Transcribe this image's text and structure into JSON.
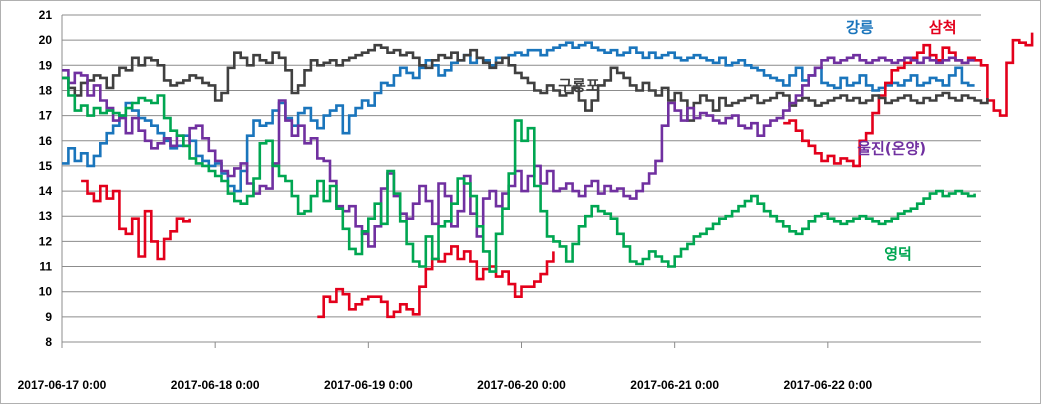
{
  "chart_data": {
    "type": "line",
    "title": "",
    "xlabel": "",
    "ylabel": "",
    "x_start": "2017-06-17 0:00",
    "x_end": "2017-06-22 23:00",
    "x_step_hours": 1,
    "x_tick_labels": [
      "2017-06-17 0:00",
      "2017-06-18 0:00",
      "2017-06-19 0:00",
      "2017-06-20 0:00",
      "2017-06-21 0:00",
      "2017-06-22 0:00"
    ],
    "ylim": [
      8,
      21
    ],
    "y_ticks": [
      8,
      9,
      10,
      11,
      12,
      13,
      14,
      15,
      16,
      17,
      18,
      19,
      20,
      21
    ],
    "grid": "horizontal",
    "series": [
      {
        "name": "강릉",
        "color": "#1a75bc",
        "label_near_hour": 125,
        "values": [
          15.1,
          15.7,
          15.2,
          15.5,
          15.0,
          15.4,
          15.9,
          16.3,
          16.6,
          17.0,
          17.5,
          17.2,
          16.9,
          16.8,
          16.6,
          16.3,
          16.0,
          15.7,
          15.8,
          16.2,
          16.0,
          15.4,
          15.2,
          15.0,
          15.1,
          14.7,
          14.2,
          14.0,
          14.8,
          16.2,
          16.8,
          16.6,
          16.7,
          17.2,
          17.5,
          16.9,
          16.6,
          17.1,
          17.3,
          16.8,
          16.5,
          17.0,
          17.2,
          17.4,
          16.3,
          17.0,
          17.3,
          17.6,
          17.4,
          17.9,
          18.3,
          18.2,
          18.6,
          18.9,
          18.7,
          18.5,
          18.9,
          19.2,
          19.0,
          18.6,
          18.8,
          19.1,
          19.2,
          19.4,
          19.1,
          19.3,
          19.2,
          19.0,
          19.3,
          19.3,
          19.4,
          19.5,
          19.4,
          19.6,
          19.6,
          19.4,
          19.6,
          19.7,
          19.8,
          19.9,
          19.7,
          19.8,
          19.9,
          19.7,
          19.6,
          19.5,
          19.6,
          19.4,
          19.5,
          19.7,
          19.5,
          19.3,
          19.5,
          19.3,
          19.4,
          19.5,
          19.3,
          19.2,
          19.3,
          19.4,
          19.3,
          19.2,
          19.1,
          19.3,
          19.0,
          19.1,
          19.2,
          19.0,
          18.9,
          18.8,
          18.6,
          18.5,
          18.4,
          18.2,
          18.6,
          18.9,
          18.4,
          18.6,
          18.9,
          18.3,
          18.2,
          18.1,
          18.5,
          18.2,
          18.3,
          18.6,
          18.2,
          18.0,
          18.1,
          18.2,
          18.3,
          18.2,
          18.4,
          18.6,
          18.2,
          18.3,
          18.5,
          18.4,
          18.2,
          18.6,
          18.9,
          18.3,
          18.2,
          18.2
        ]
      },
      {
        "name": "삼척",
        "color": "#e3001b",
        "label_near_hour": 138,
        "values": [
          null,
          null,
          null,
          14.4,
          13.9,
          13.6,
          14.2,
          13.7,
          14.0,
          12.5,
          12.3,
          12.9,
          11.4,
          13.2,
          12.0,
          11.3,
          12.1,
          12.4,
          12.9,
          12.8,
          12.9,
          null,
          null,
          null,
          null,
          null,
          null,
          null,
          null,
          null,
          null,
          null,
          null,
          null,
          null,
          null,
          null,
          null,
          null,
          null,
          9.0,
          9.8,
          9.6,
          10.1,
          9.9,
          9.3,
          9.5,
          9.7,
          9.8,
          9.8,
          9.6,
          9.0,
          9.2,
          9.5,
          9.3,
          9.1,
          10.2,
          10.9,
          11.3,
          11.2,
          11.5,
          11.8,
          11.3,
          11.6,
          11.2,
          10.5,
          10.9,
          11.0,
          10.6,
          10.8,
          10.3,
          9.8,
          10.2,
          10.2,
          10.4,
          10.7,
          11.2,
          11.6,
          null,
          null,
          null,
          null,
          null,
          null,
          null,
          null,
          null,
          null,
          null,
          null,
          null,
          null,
          null,
          null,
          null,
          null,
          null,
          null,
          null,
          null,
          null,
          null,
          null,
          null,
          null,
          null,
          null,
          null,
          null,
          null,
          null,
          null,
          null,
          16.7,
          16.8,
          16.4,
          16.0,
          15.8,
          15.5,
          15.2,
          15.4,
          15.1,
          15.3,
          15.2,
          15.0,
          16.0,
          16.3,
          17.1,
          17.8,
          18.3,
          18.8,
          18.9,
          19.1,
          19.3,
          19.5,
          19.8,
          19.4,
          19.2,
          19.7,
          19.5,
          19.2,
          19.1,
          19.3,
          19.2,
          19.0,
          17.6,
          17.2,
          17.0,
          19.1,
          20.0,
          19.9,
          19.8,
          20.3
        ]
      },
      {
        "name": "구룡포",
        "color": "#404040",
        "label_near_hour": 81,
        "values": [
          18.5,
          18.1,
          17.8,
          18.3,
          18.4,
          18.6,
          18.5,
          18.1,
          18.6,
          18.9,
          18.8,
          19.3,
          19.0,
          19.3,
          19.2,
          19.0,
          18.4,
          18.2,
          18.3,
          18.4,
          18.6,
          18.5,
          18.3,
          18.2,
          17.6,
          17.9,
          18.9,
          19.5,
          19.3,
          19.0,
          19.4,
          19.2,
          19.1,
          19.5,
          19.3,
          18.8,
          17.9,
          18.2,
          18.8,
          19.2,
          19.0,
          19.1,
          19.2,
          19.0,
          19.2,
          19.3,
          19.4,
          19.5,
          19.6,
          19.8,
          19.7,
          19.5,
          19.6,
          19.4,
          19.5,
          19.3,
          19.0,
          18.9,
          19.2,
          19.4,
          19.3,
          19.5,
          19.2,
          19.4,
          19.6,
          19.3,
          19.1,
          18.9,
          19.1,
          19.3,
          19.0,
          18.7,
          18.5,
          18.3,
          18.0,
          17.9,
          18.2,
          18.0,
          17.8,
          17.9,
          18.1,
          17.6,
          17.2,
          17.6,
          18.2,
          18.4,
          18.9,
          18.7,
          18.5,
          18.2,
          18.0,
          18.3,
          18.0,
          17.8,
          18.1,
          17.6,
          17.9,
          17.6,
          16.8,
          17.5,
          17.8,
          17.6,
          17.2,
          17.7,
          17.4,
          17.5,
          17.6,
          17.7,
          17.8,
          17.5,
          17.6,
          17.7,
          17.9,
          17.8,
          17.4,
          17.6,
          17.7,
          17.6,
          17.4,
          17.5,
          17.6,
          17.7,
          17.8,
          17.6,
          17.7,
          17.5,
          17.6,
          17.8,
          17.7,
          17.5,
          17.6,
          17.7,
          17.8,
          17.6,
          17.5,
          17.7,
          17.6,
          17.8,
          17.9,
          17.7,
          17.6,
          17.8,
          17.7,
          17.6,
          17.5,
          17.7
        ]
      },
      {
        "name": "울진(온양)",
        "color": "#7030a0",
        "label_near_hour": 130,
        "values": [
          18.8,
          18.3,
          18.7,
          18.6,
          17.8,
          18.2,
          17.6,
          17.3,
          16.8,
          16.9,
          16.3,
          16.9,
          16.4,
          16.0,
          15.7,
          15.9,
          16.1,
          15.8,
          16.2,
          15.8,
          16.5,
          16.6,
          16.1,
          15.6,
          15.2,
          14.8,
          14.6,
          14.9,
          15.1,
          14.3,
          13.9,
          14.2,
          14.1,
          15.1,
          17.6,
          16.8,
          16.2,
          16.6,
          15.9,
          16.1,
          15.3,
          15.2,
          14.4,
          13.4,
          13.2,
          13.4,
          12.6,
          12.3,
          11.8,
          12.6,
          14.1,
          14.7,
          13.8,
          13.1,
          12.9,
          13.5,
          14.2,
          13.6,
          12.7,
          14.3,
          13.8,
          12.6,
          13.2,
          14.6,
          13.1,
          12.2,
          13.7,
          14.0,
          13.4,
          13.9,
          14.2,
          14.8,
          14.0,
          14.6,
          15.0,
          14.3,
          14.8,
          14.0,
          14.1,
          14.3,
          14.0,
          13.8,
          14.2,
          14.4,
          13.9,
          14.2,
          14.0,
          14.1,
          13.8,
          13.7,
          14.0,
          14.3,
          14.7,
          15.2,
          16.6,
          17.5,
          17.2,
          16.8,
          17.3,
          16.9,
          17.1,
          17.0,
          16.8,
          16.7,
          16.9,
          17.0,
          16.6,
          16.5,
          16.7,
          16.2,
          16.6,
          16.8,
          16.9,
          17.2,
          17.5,
          17.8,
          18.2,
          18.6,
          18.9,
          19.2,
          19.3,
          19.1,
          19.2,
          19.3,
          19.4,
          19.2,
          19.1,
          19.2,
          19.3,
          19.2,
          19.1,
          19.2,
          19.3,
          19.2,
          19.1,
          19.3,
          19.2,
          19.1,
          19.2,
          19.3,
          19.2,
          19.1,
          19.2,
          19.2
        ]
      },
      {
        "name": "영덕",
        "color": "#00a651",
        "label_near_hour": 131,
        "values": [
          18.5,
          17.8,
          17.2,
          17.4,
          17.0,
          17.3,
          17.1,
          17.2,
          17.1,
          17.0,
          17.3,
          17.5,
          17.7,
          17.6,
          17.5,
          17.8,
          16.9,
          16.4,
          16.2,
          15.8,
          15.3,
          15.1,
          15.0,
          14.8,
          14.6,
          14.4,
          13.9,
          13.6,
          13.5,
          13.8,
          14.5,
          15.9,
          16.0,
          15.0,
          14.6,
          14.4,
          13.8,
          13.1,
          13.2,
          13.8,
          14.4,
          13.6,
          14.2,
          13.3,
          12.5,
          11.7,
          11.5,
          12.4,
          12.9,
          13.5,
          12.7,
          14.8,
          13.9,
          12.8,
          11.9,
          11.2,
          11.0,
          12.2,
          11.3,
          12.6,
          12.8,
          13.5,
          14.5,
          14.3,
          13.8,
          12.6,
          11.6,
          10.8,
          12.3,
          13.3,
          14.7,
          16.8,
          16.0,
          16.5,
          14.2,
          13.2,
          12.2,
          12.0,
          11.8,
          11.2,
          11.9,
          12.6,
          13.0,
          13.4,
          13.2,
          13.1,
          12.9,
          12.3,
          11.8,
          11.2,
          11.1,
          11.3,
          11.6,
          11.4,
          11.2,
          11.0,
          11.4,
          11.7,
          11.9,
          12.2,
          12.3,
          12.5,
          12.7,
          12.9,
          13.0,
          13.2,
          13.4,
          13.6,
          13.8,
          13.5,
          13.2,
          13.0,
          12.8,
          12.6,
          12.4,
          12.3,
          12.5,
          12.8,
          13.0,
          13.1,
          12.9,
          12.8,
          12.7,
          12.8,
          12.9,
          13.0,
          12.9,
          12.8,
          12.7,
          12.8,
          12.9,
          13.1,
          13.2,
          13.3,
          13.5,
          13.7,
          13.9,
          14.0,
          13.8,
          13.9,
          14.0,
          13.9,
          13.8,
          13.9
        ]
      }
    ]
  }
}
